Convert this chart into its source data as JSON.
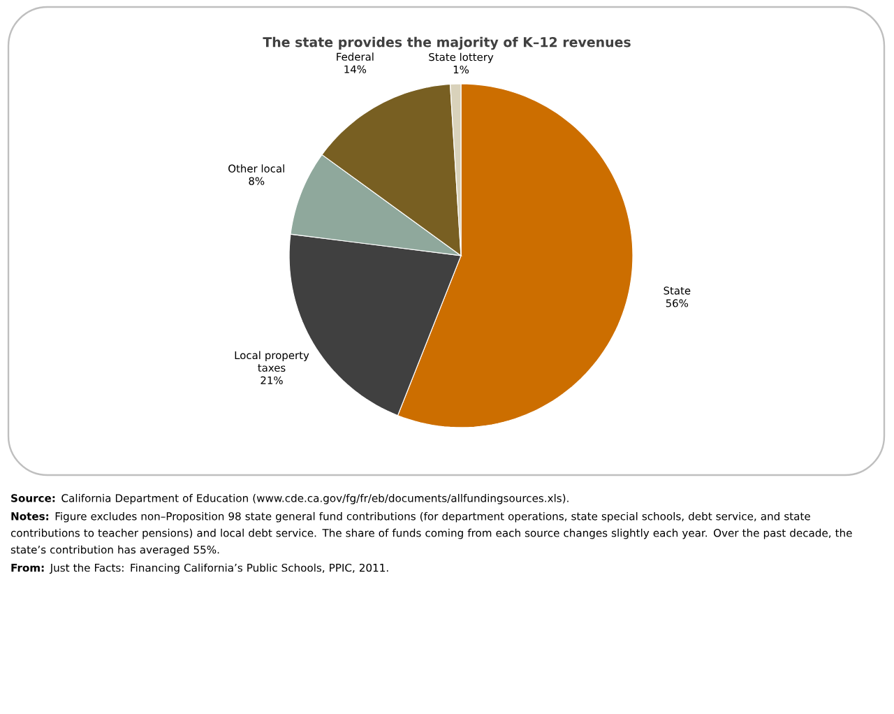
{
  "chart_data": {
    "type": "pie",
    "title": "The state provides the majority of K–12 revenues",
    "categories": [
      "State",
      "Local property taxes",
      "Other local",
      "Federal",
      "State lottery"
    ],
    "values": [
      56,
      21,
      8,
      14,
      1
    ],
    "colors": [
      "#cc6e00",
      "#404040",
      "#8fa89c",
      "#785f22",
      "#d9d2bb"
    ],
    "value_labels": [
      "56%",
      "21%",
      "8%",
      "14%",
      "1%"
    ],
    "annotations": [
      "**Source:** California Department of Education (www.cde.ca.gov/fg/fr/eb/documents/allfundingsources.xls).",
      "**Notes:** Figure excludes non–Proposition 98 state general fund contributions (for department operations, state special schools, debt service, and state contributions to teacher pensions) and local debt service. The share of funds coming from each source changes slightly each year. Over the past decade, the state’s contribution has averaged 55%.",
      "**From:** Just the Facts: Financing California’s Public Schools, PPIC, 2011."
    ]
  }
}
